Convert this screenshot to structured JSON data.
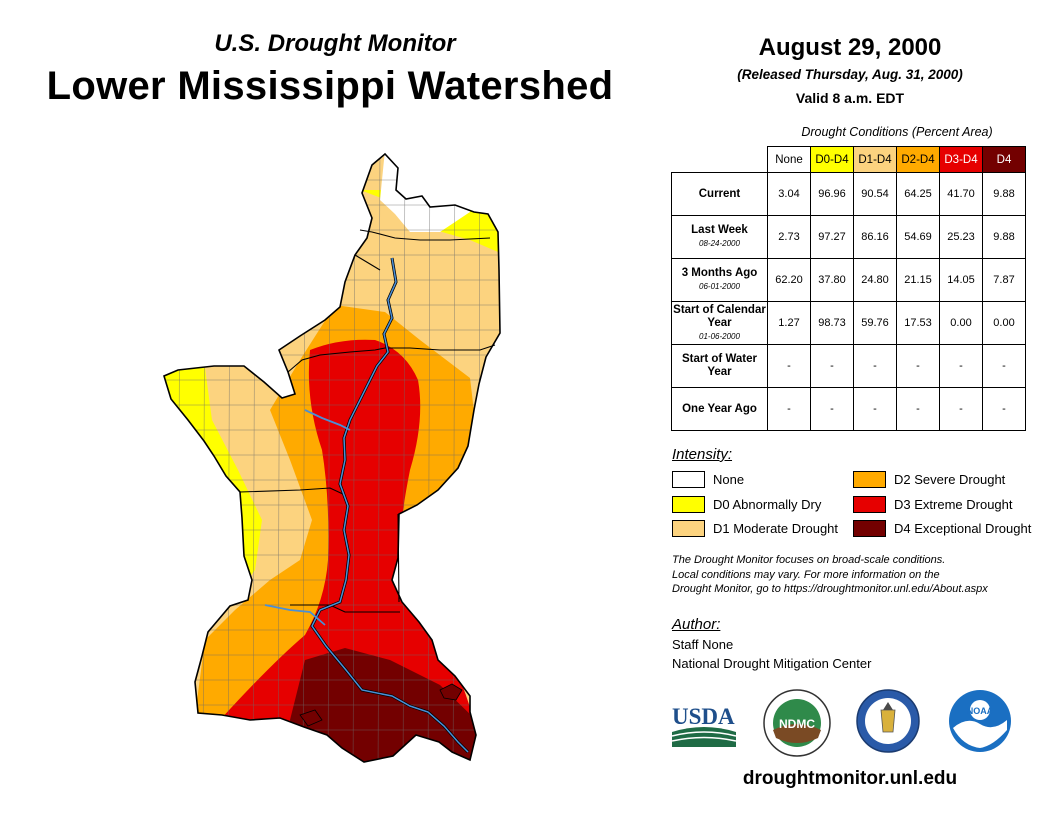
{
  "header": {
    "subtitle": "U.S. Drought Monitor",
    "title": "Lower Mississippi Watershed"
  },
  "date_block": {
    "date": "August 29, 2000",
    "released": "(Released Thursday, Aug. 31, 2000)",
    "valid": "Valid 8 a.m. EDT"
  },
  "table": {
    "caption": "Drought Conditions (Percent Area)",
    "columns": [
      "None",
      "D0-D4",
      "D1-D4",
      "D2-D4",
      "D3-D4",
      "D4"
    ],
    "rows": [
      {
        "label": "Current",
        "date": "",
        "values": [
          "3.04",
          "96.96",
          "90.54",
          "64.25",
          "41.70",
          "9.88"
        ]
      },
      {
        "label": "Last Week",
        "date": "08-24-2000",
        "values": [
          "2.73",
          "97.27",
          "86.16",
          "54.69",
          "25.23",
          "9.88"
        ]
      },
      {
        "label": "3 Months Ago",
        "date": "06-01-2000",
        "values": [
          "62.20",
          "37.80",
          "24.80",
          "21.15",
          "14.05",
          "7.87"
        ]
      },
      {
        "label": "Start of Calendar Year",
        "date": "01-06-2000",
        "values": [
          "1.27",
          "98.73",
          "59.76",
          "17.53",
          "0.00",
          "0.00"
        ]
      },
      {
        "label": "Start of Water Year",
        "date": "",
        "values": [
          "-",
          "-",
          "-",
          "-",
          "-",
          "-"
        ]
      },
      {
        "label": "One Year Ago",
        "date": "",
        "values": [
          "-",
          "-",
          "-",
          "-",
          "-",
          "-"
        ]
      }
    ]
  },
  "legend": {
    "heading": "Intensity:",
    "items": [
      {
        "label": "None",
        "color": "#ffffff"
      },
      {
        "label": "D0 Abnormally Dry",
        "color": "#ffff00"
      },
      {
        "label": "D1 Moderate Drought",
        "color": "#fcd37f"
      },
      {
        "label": "D2 Severe Drought",
        "color": "#ffaa00"
      },
      {
        "label": "D3 Extreme Drought",
        "color": "#e60000"
      },
      {
        "label": "D4 Exceptional Drought",
        "color": "#730000"
      }
    ]
  },
  "note": {
    "line1": "The Drought Monitor focuses on broad-scale conditions.",
    "line2": "Local conditions may vary. For more information on the",
    "line3": "Drought Monitor, go to https://droughtmonitor.unl.edu/About.aspx"
  },
  "author": {
    "heading": "Author:",
    "name": "Staff None",
    "org": "National Drought Mitigation Center"
  },
  "logos": {
    "usda": "USDA",
    "ndmc": "NDMC",
    "noaa": "NOAA"
  },
  "website": "droughtmonitor.unl.edu",
  "colors": {
    "river": "#4a8fd6",
    "map_border": "#000000"
  }
}
